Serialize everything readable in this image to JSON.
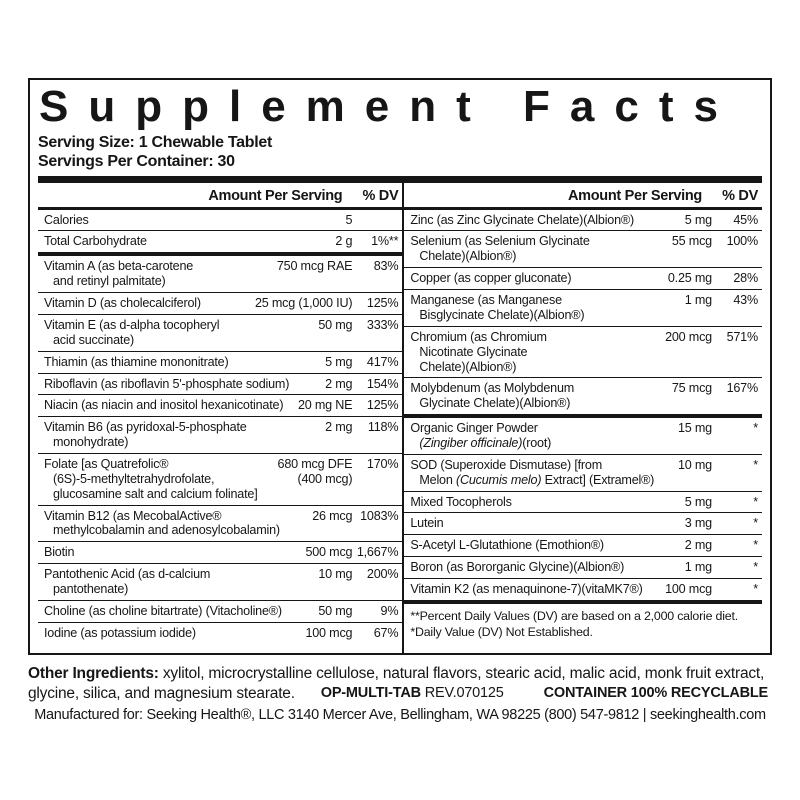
{
  "colors": {
    "ink": "#161616",
    "background": "#ffffff"
  },
  "title": "Supplement Facts",
  "serving": {
    "size": "Serving Size: 1 Chewable Tablet",
    "per_container": "Servings Per Container: 30"
  },
  "col_header": {
    "amount": "Amount Per Serving",
    "dv": "% DV"
  },
  "left_rows": [
    {
      "name": "Calories",
      "amount": "5",
      "dv": ""
    },
    {
      "name": "Total Carbohydrate",
      "amount": "2 g",
      "dv": "1%**",
      "sep": "thick"
    },
    {
      "name": "Vitamin A (as beta-carotene\nand retinyl palmitate)",
      "amount": "750 mcg RAE",
      "dv": "83%"
    },
    {
      "name": "Vitamin D (as cholecalciferol)",
      "amount": "25 mcg (1,000 IU)",
      "dv": "125%"
    },
    {
      "name": "Vitamin E (as d-alpha tocopheryl\nacid succinate)",
      "amount": "50 mg",
      "dv": "333%"
    },
    {
      "name": "Thiamin (as thiamine mononitrate)",
      "amount": "5 mg",
      "dv": "417%"
    },
    {
      "name": "Riboflavin (as riboflavin 5'-phosphate sodium)",
      "amount": "2 mg",
      "dv": "154%"
    },
    {
      "name": "Niacin (as niacin and inositol hexanicotinate)",
      "amount": "20 mg NE",
      "dv": "125%"
    },
    {
      "name": "Vitamin B6 (as pyridoxal-5-phosphate\nmonohydrate)",
      "amount": "2 mg",
      "dv": "118%"
    },
    {
      "name": "Folate [as Quatrefolic®\n(6S)-5-methyltetrahydrofolate,\nglucosamine salt and calcium folinate]",
      "amount": "680 mcg DFE\n(400 mcg)",
      "dv": "170%"
    },
    {
      "name": "Vitamin B12 (as MecobalActive®\nmethylcobalamin and adenosylcobalamin)",
      "amount": "26 mcg",
      "dv": "1083%"
    },
    {
      "name": "Biotin",
      "amount": "500 mcg",
      "dv": "1,667%"
    },
    {
      "name": "Pantothenic Acid (as d-calcium\npantothenate)",
      "amount": "10 mg",
      "dv": "200%"
    },
    {
      "name": "Choline (as choline bitartrate) (Vitacholine®)",
      "amount": "50 mg",
      "dv": "9%"
    },
    {
      "name": "Iodine (as potassium iodide)",
      "amount": "100 mcg",
      "dv": "67%"
    }
  ],
  "right_minerals": [
    {
      "name": "Zinc (as Zinc Glycinate Chelate)(Albion®)",
      "amount": "5 mg",
      "dv": "45%"
    },
    {
      "name": "Selenium (as Selenium Glycinate\nChelate)(Albion®)",
      "amount": "55 mcg",
      "dv": "100%"
    },
    {
      "name": "Copper (as copper gluconate)",
      "amount": "0.25 mg",
      "dv": "28%"
    },
    {
      "name": "Manganese (as Manganese\nBisglycinate Chelate)(Albion®)",
      "amount": "1 mg",
      "dv": "43%"
    },
    {
      "name": "Chromium (as Chromium\nNicotinate Glycinate\nChelate)(Albion®)",
      "amount": "200 mcg",
      "dv": "571%"
    },
    {
      "name": "Molybdenum (as Molybdenum\nGlycinate Chelate)(Albion®)",
      "amount": "75 mcg",
      "dv": "167%",
      "sep": "thick"
    }
  ],
  "right_botanicals": [
    {
      "parts": [
        {
          "text": "Organic Ginger Powder\n",
          "italic": false
        },
        {
          "text": "(Zingiber officinale)",
          "italic": true
        },
        {
          "text": "(root)",
          "italic": false
        }
      ],
      "amount": "15 mg",
      "dv": "*"
    },
    {
      "parts": [
        {
          "text": "SOD (Superoxide Dismutase) [from\nMelon ",
          "italic": false
        },
        {
          "text": "(Cucumis melo)",
          "italic": true
        },
        {
          "text": " Extract] (Extramel®)",
          "italic": false
        }
      ],
      "amount": "10 mg",
      "dv": "*"
    },
    {
      "name": "Mixed Tocopherols",
      "amount": "5 mg",
      "dv": "*"
    },
    {
      "name": "Lutein",
      "amount": "3 mg",
      "dv": "*"
    },
    {
      "name": "S-Acetyl L-Glutathione (Emothion®)",
      "amount": "2 mg",
      "dv": "*"
    },
    {
      "name": "Boron (as Bororganic Glycine)(Albion®)",
      "amount": "1 mg",
      "dv": "*"
    },
    {
      "name": "Vitamin K2 (as menaquinone-7)(vitaMK7®)",
      "amount": "100 mcg",
      "dv": "*",
      "sep": "thick"
    }
  ],
  "footnotes": {
    "line1": "**Percent Daily Values (DV) are based on a 2,000 calorie diet.",
    "line2": "*Daily Value (DV) Not Established."
  },
  "bottom": {
    "other_ingredients_label": "Other Ingredients:",
    "other_ingredients": " xylitol, microcrystalline cellulose, natural flavors, stearic acid, malic acid, monk fruit extract,\nglycine, silica, and magnesium stearate.",
    "product_code": "OP-MULTI-TAB",
    "revision": "REV.070125",
    "recyclable": "CONTAINER 100% RECYCLABLE",
    "manufactured": "Manufactured for: Seeking Health®, LLC  3140 Mercer Ave, Bellingham, WA 98225 (800) 547-9812 | seekinghealth.com"
  }
}
